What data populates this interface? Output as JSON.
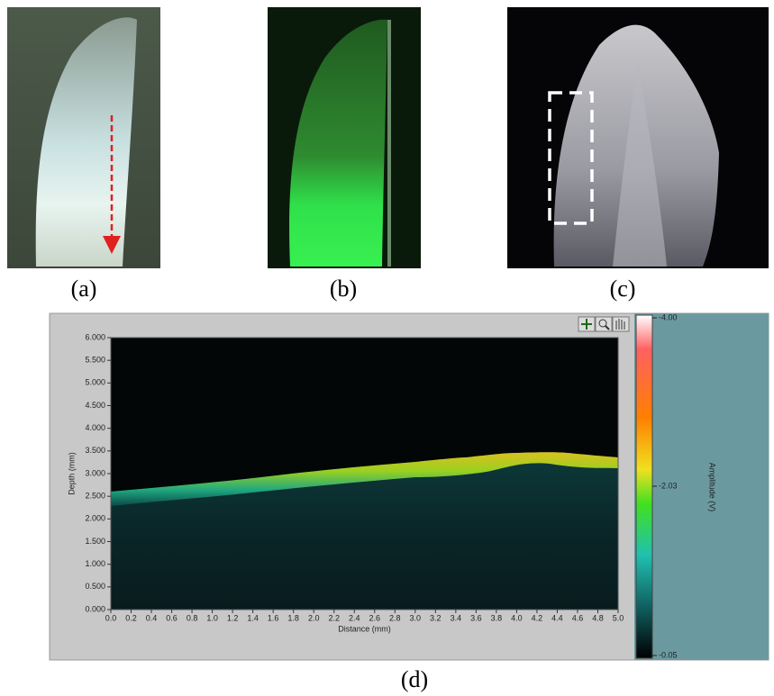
{
  "panels": {
    "a": {
      "label": "(a)"
    },
    "b": {
      "label": "(b)"
    },
    "c": {
      "label": "(c)"
    },
    "d": {
      "label": "(d)"
    }
  },
  "chart_data": {
    "type": "image",
    "x_label": "Distance (mm)",
    "y_label": "Depth (mm)",
    "xlim": [
      0,
      5
    ],
    "ylim": [
      0,
      6
    ],
    "xticks": [
      {
        "value": 0,
        "label": "0.0"
      },
      {
        "value": 0.2,
        "label": "0.2"
      },
      {
        "value": 0.4,
        "label": "0.4"
      },
      {
        "value": 0.6,
        "label": "0.6"
      },
      {
        "value": 0.8,
        "label": "0.8"
      },
      {
        "value": 1,
        "label": "1.0"
      },
      {
        "value": 1.2,
        "label": "1.2"
      },
      {
        "value": 1.4,
        "label": "1.4"
      },
      {
        "value": 1.6,
        "label": "1.6"
      },
      {
        "value": 1.8,
        "label": "1.8"
      },
      {
        "value": 2,
        "label": "2.0"
      },
      {
        "value": 2.2,
        "label": "2.2"
      },
      {
        "value": 2.4,
        "label": "2.4"
      },
      {
        "value": 2.6,
        "label": "2.6"
      },
      {
        "value": 2.8,
        "label": "2.8"
      },
      {
        "value": 3,
        "label": "3.0"
      },
      {
        "value": 3.2,
        "label": "3.2"
      },
      {
        "value": 3.4,
        "label": "3.4"
      },
      {
        "value": 3.6,
        "label": "3.6"
      },
      {
        "value": 3.8,
        "label": "3.8"
      },
      {
        "value": 4,
        "label": "4.0"
      },
      {
        "value": 4.2,
        "label": "4.2"
      },
      {
        "value": 4.4,
        "label": "4.4"
      },
      {
        "value": 4.6,
        "label": "4.6"
      },
      {
        "value": 4.8,
        "label": "4.8"
      },
      {
        "value": 5,
        "label": "5.0"
      }
    ],
    "yticks": [
      {
        "value": 0,
        "label": "0.000"
      },
      {
        "value": 0.5,
        "label": "0.500"
      },
      {
        "value": 1,
        "label": "1.000"
      },
      {
        "value": 1.5,
        "label": "1.500"
      },
      {
        "value": 2,
        "label": "2.000"
      },
      {
        "value": 2.5,
        "label": "2.500"
      },
      {
        "value": 3,
        "label": "3.000"
      },
      {
        "value": 3.5,
        "label": "3.500"
      },
      {
        "value": 4,
        "label": "4.000"
      },
      {
        "value": 4.5,
        "label": "4.500"
      },
      {
        "value": 5,
        "label": "5.000"
      },
      {
        "value": 5.5,
        "label": "5.500"
      },
      {
        "value": 6,
        "label": "6.000"
      }
    ],
    "colorbar": {
      "label": "Amplitude (V)",
      "lim": [
        -0.05,
        -4
      ],
      "ticks": [
        {
          "value": -4,
          "label": "-4.00"
        },
        {
          "value": -2.03,
          "label": "-2.03"
        },
        {
          "value": -0.05,
          "label": "-0.05"
        }
      ]
    }
  }
}
